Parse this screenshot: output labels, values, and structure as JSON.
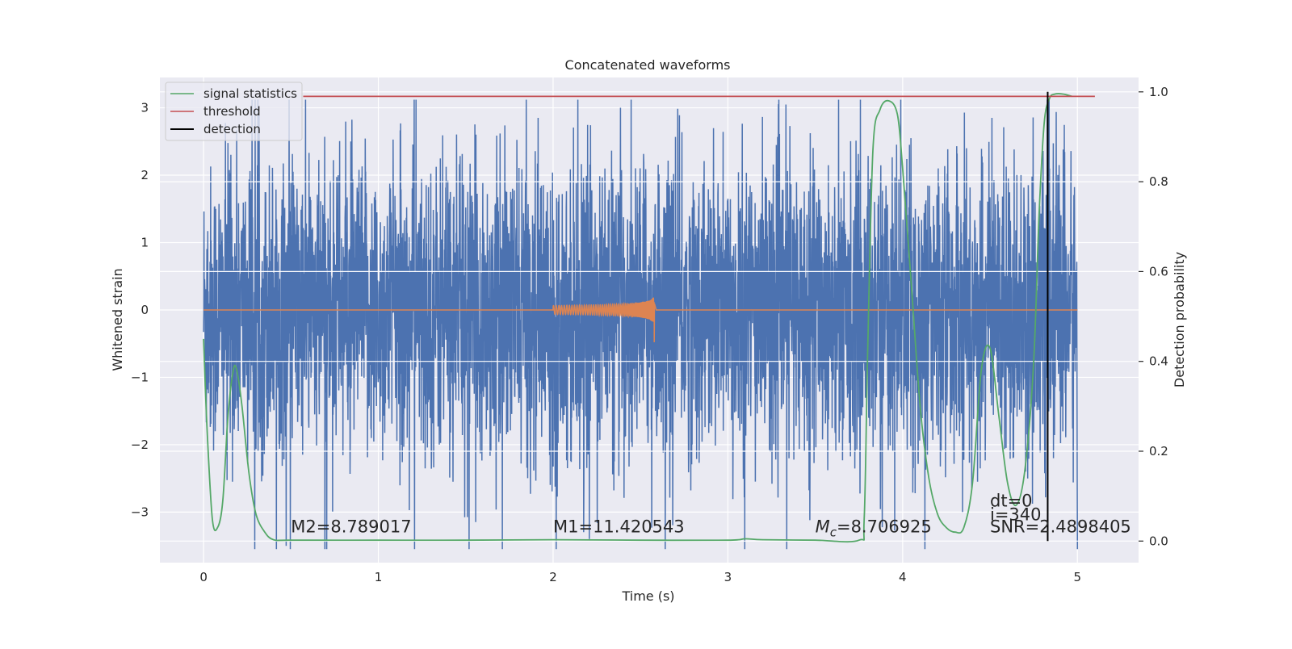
{
  "chart_data": {
    "type": "line",
    "title": "Concatenated waveforms",
    "xlabel": "Time (s)",
    "ylabel": "Whitened strain",
    "ylabel_right": "Detection probability",
    "xlim": [
      -0.25,
      5.35
    ],
    "ylim": [
      -3.75,
      3.45
    ],
    "ylim_right": [
      -0.048,
      1.032
    ],
    "xticks": [
      0,
      1,
      2,
      3,
      4,
      5
    ],
    "yticks": [
      -3,
      -2,
      -1,
      0,
      1,
      2,
      3
    ],
    "yticks_right": [
      0.0,
      0.2,
      0.4,
      0.6,
      0.8,
      1.0
    ],
    "grid": true,
    "legend_position": "top-left",
    "legend": [
      "signal statistics",
      "threshold",
      "detection"
    ],
    "colors": {
      "strain": "#4c72b0",
      "template": "#dd8452",
      "signal_statistics": "#55a868",
      "threshold": "#c44e52",
      "detection": "#000000",
      "background": "#eaeaf2",
      "grid": "#ffffff"
    },
    "strain_noise": {
      "x_range": [
        0,
        5
      ],
      "typical_range": [
        -2.6,
        2.6
      ],
      "peak_range": [
        -3.55,
        3.12
      ],
      "axis": "left"
    },
    "template_chirp": {
      "x_start": 2.0,
      "x_end": 2.58,
      "peak_amplitude": 0.32,
      "merger_min": -0.48,
      "axis": "left"
    },
    "signal_statistics": {
      "axis": "right",
      "x": [
        0,
        0.02,
        0.05,
        0.08,
        0.11,
        0.14,
        0.17,
        0.19,
        0.22,
        0.26,
        0.3,
        0.35,
        0.4,
        0.5,
        1.0,
        1.5,
        2.0,
        2.5,
        3.0,
        3.1,
        3.2,
        3.5,
        3.75,
        3.78,
        3.8,
        3.83,
        3.87,
        3.92,
        3.97,
        4.0,
        4.05,
        4.1,
        4.15,
        4.2,
        4.25,
        4.3,
        4.35,
        4.4,
        4.45,
        4.5,
        4.55,
        4.6,
        4.65,
        4.7,
        4.75,
        4.78,
        4.81,
        4.84,
        4.87,
        4.92,
        4.97
      ],
      "y": [
        0.45,
        0.25,
        0.05,
        0.03,
        0.09,
        0.28,
        0.38,
        0.38,
        0.3,
        0.15,
        0.06,
        0.02,
        0.003,
        0.002,
        0.002,
        0.002,
        0.003,
        0.002,
        0.002,
        0.005,
        0.003,
        0.002,
        0.002,
        0.05,
        0.42,
        0.87,
        0.96,
        0.98,
        0.95,
        0.83,
        0.57,
        0.3,
        0.14,
        0.06,
        0.03,
        0.02,
        0.03,
        0.13,
        0.38,
        0.43,
        0.28,
        0.13,
        0.08,
        0.16,
        0.4,
        0.72,
        0.93,
        0.985,
        0.995,
        0.995,
        0.99
      ]
    },
    "threshold": {
      "value": 0.99,
      "x_range": [
        0.57,
        5.1
      ],
      "axis": "right"
    },
    "detection": {
      "x": 4.83,
      "y_range": [
        0.0,
        1.0
      ],
      "axis": "right"
    },
    "annotations": {
      "m2": {
        "text": "M2=8.789017",
        "x": 0.5,
        "y": -3.3
      },
      "m1": {
        "text": "M1=11.420543",
        "x": 2.0,
        "y": -3.3
      },
      "mc_label": {
        "symbol": "M",
        "subscript": "c",
        "text": "=8.706925",
        "x": 3.5,
        "y": -3.3
      },
      "dt": {
        "text": "dt=0",
        "x": 4.5,
        "y": -2.92
      },
      "i": {
        "text": "i=340",
        "x": 4.5,
        "y": -3.12
      },
      "snr": {
        "text": "SNR=2.4898405",
        "x": 4.5,
        "y": -3.3
      }
    }
  }
}
